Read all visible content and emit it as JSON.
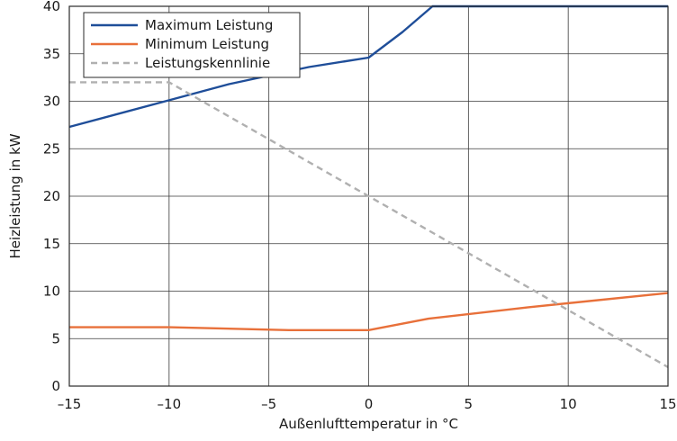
{
  "chart_data": {
    "type": "line",
    "xlabel": "Außenlufttemperatur in °C",
    "ylabel": "Heizleistung in kW",
    "xlim": [
      -15,
      15
    ],
    "ylim": [
      0,
      40
    ],
    "x_ticks": [
      -15,
      -10,
      -5,
      0,
      5,
      10,
      15
    ],
    "y_ticks": [
      0,
      5,
      10,
      15,
      20,
      25,
      30,
      35,
      40
    ],
    "x_tick_labels": [
      "–15",
      "–10",
      "–5",
      "0",
      "5",
      "10",
      "15"
    ],
    "y_tick_labels": [
      "0",
      "5",
      "10",
      "15",
      "20",
      "25",
      "30",
      "35",
      "40"
    ],
    "grid": true,
    "legend_position": "top-left",
    "series": [
      {
        "name": "Maximum Leistung",
        "color": "#1f4e99",
        "style": "solid",
        "points": [
          [
            -15,
            27.3
          ],
          [
            -10,
            30.1
          ],
          [
            -7,
            31.8
          ],
          [
            -3,
            33.6
          ],
          [
            0,
            34.6
          ],
          [
            1.7,
            37.3
          ],
          [
            3.2,
            40.0
          ],
          [
            15,
            40.0
          ]
        ]
      },
      {
        "name": "Minimum Leistung",
        "color": "#e8703a",
        "style": "solid",
        "points": [
          [
            -15,
            6.2
          ],
          [
            -10,
            6.2
          ],
          [
            -4,
            5.9
          ],
          [
            0,
            5.9
          ],
          [
            3,
            7.1
          ],
          [
            8,
            8.3
          ],
          [
            15,
            9.8
          ]
        ]
      },
      {
        "name": "Leistungskennlinie",
        "color": "#b0b0b0",
        "style": "dashed",
        "points": [
          [
            -15,
            32.0
          ],
          [
            -10,
            32.0
          ],
          [
            0,
            20.0
          ],
          [
            15,
            2.0
          ]
        ]
      }
    ]
  }
}
